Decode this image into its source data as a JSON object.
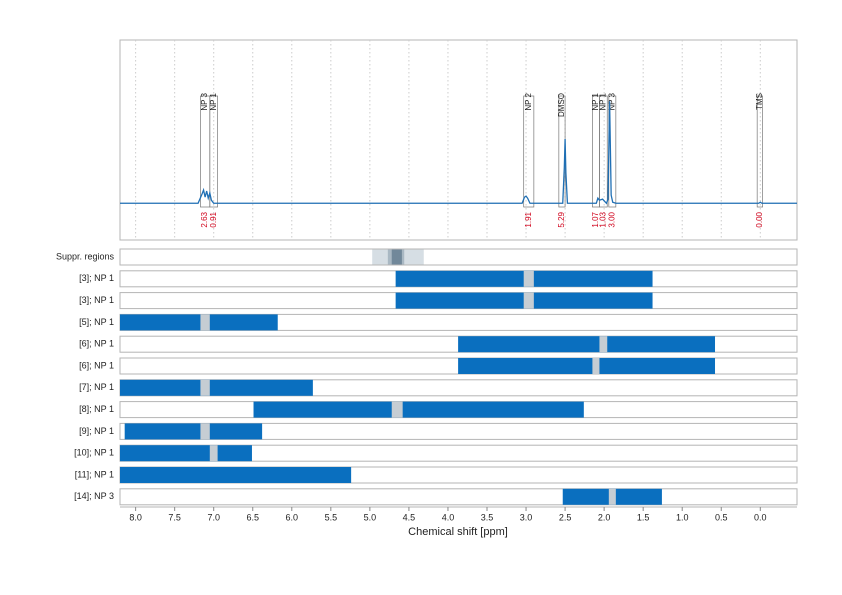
{
  "chart_data": {
    "type": "nmr",
    "x_label": "Chemical shift [ppm]",
    "xlim": [
      8.2,
      -0.47
    ],
    "xticks": [
      {
        "value": 8,
        "label": "8.0"
      },
      7.5,
      {
        "value": 7,
        "label": "7.0"
      },
      6.5,
      {
        "value": 6,
        "label": "6.0"
      },
      5.5,
      {
        "value": 5,
        "label": "5.0"
      },
      4.5,
      {
        "value": 4,
        "label": "4.0"
      },
      3.5,
      {
        "value": 3,
        "label": "3.0"
      },
      2.5,
      {
        "value": 2,
        "label": "2.0"
      },
      1.5,
      {
        "value": 1,
        "label": "1.0"
      },
      0.5,
      {
        "value": 0,
        "label": "0.0"
      }
    ],
    "grid": true,
    "spectrum": {
      "color": "#1f6fb4",
      "ylim": [
        -36,
        160
      ],
      "x": [
        8.2,
        7.2,
        7.15,
        7.13,
        7.11,
        7.09,
        7.07,
        7.05,
        7.03,
        7.0,
        3.05,
        3.02,
        3.0,
        2.98,
        2.95,
        2.53,
        2.51,
        2.5,
        2.49,
        2.47,
        2.1,
        2.08,
        2.06,
        2.02,
        1.97,
        1.95,
        1.93,
        1.91,
        1.89,
        1.85,
        0.02,
        0.0,
        -0.02,
        -0.47
      ],
      "y": [
        0,
        0,
        9,
        13,
        6,
        12,
        5,
        10,
        3,
        0,
        0,
        6,
        7,
        5,
        0,
        0,
        35,
        63,
        30,
        0,
        0,
        5,
        3,
        4,
        0,
        4,
        100,
        8,
        1,
        0,
        0,
        1,
        0,
        0
      ]
    },
    "regions": {
      "labels": [
        "NP 3",
        "NP 1",
        "NP 2",
        "DMSO",
        "NP 1",
        "NP 1",
        "NP 3",
        "TMS"
      ],
      "ranges": [
        [
          7.17,
          7.05
        ],
        [
          7.05,
          6.95
        ],
        [
          3.03,
          2.9
        ],
        [
          2.58,
          2.5
        ],
        [
          2.15,
          2.06
        ],
        [
          2.06,
          1.96
        ],
        [
          1.94,
          1.85
        ],
        [
          0.04,
          -0.03
        ]
      ],
      "values": [
        2.63,
        0.91,
        1.91,
        5.29,
        1.07,
        1.03,
        3,
        0
      ],
      "value_labels": [
        "2.63",
        "0.91",
        "1.91",
        "5.29",
        "1.07",
        "1.03",
        "3.00",
        "0.00"
      ],
      "color": "#d0021b"
    },
    "suppression": {
      "label": "Suppr. regions",
      "ranges": [
        [
          4.97,
          4.31
        ],
        [
          4.77,
          4.56
        ],
        [
          4.72,
          4.59
        ]
      ],
      "colors": [
        "#d6dee4",
        "#a9b8c3",
        "#71889a"
      ]
    },
    "bar_color": "#0a6fbf",
    "gap_color": "#c6cdd3",
    "rows": [
      {
        "label": "[3]; NP 1",
        "range": [
          4.67,
          1.38
        ],
        "gap": [
          3.03,
          2.9
        ]
      },
      {
        "label": "[3]; NP 1",
        "range": [
          4.67,
          1.38
        ],
        "gap": [
          3.03,
          2.9
        ]
      },
      {
        "label": "[5]; NP 1",
        "range": [
          8.2,
          6.18
        ],
        "gap": [
          7.17,
          7.05
        ]
      },
      {
        "label": "[6]; NP 1",
        "range": [
          3.87,
          0.58
        ],
        "gap": [
          2.06,
          1.96
        ]
      },
      {
        "label": "[6]; NP 1",
        "range": [
          3.87,
          0.58
        ],
        "gap": [
          2.15,
          2.06
        ]
      },
      {
        "label": "[7]; NP 1",
        "range": [
          8.2,
          5.73
        ],
        "gap": [
          7.17,
          7.05
        ]
      },
      {
        "label": "[8]; NP 1",
        "range": [
          6.49,
          2.26
        ],
        "gap": [
          4.72,
          4.58
        ]
      },
      {
        "label": "[9]; NP 1",
        "range": [
          8.14,
          6.38
        ],
        "gap": [
          7.17,
          7.05
        ]
      },
      {
        "label": "[10]; NP 1",
        "range": [
          8.2,
          6.51
        ],
        "gap": [
          7.05,
          6.95
        ]
      },
      {
        "label": "[11]; NP 1",
        "range": [
          8.2,
          5.24
        ]
      },
      {
        "label": "[14]; NP 3",
        "range": [
          2.53,
          1.26
        ],
        "gap": [
          1.94,
          1.85
        ]
      }
    ]
  }
}
